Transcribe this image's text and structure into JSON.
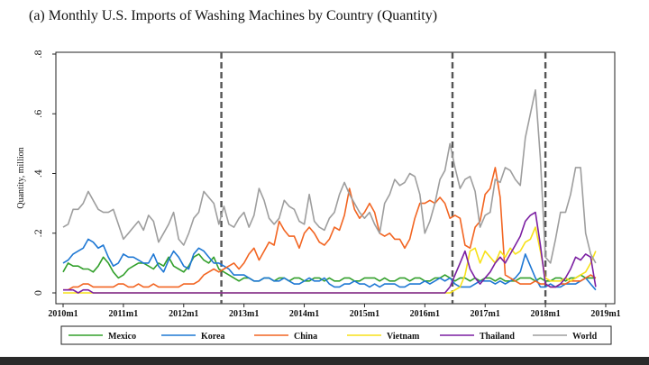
{
  "title": "(a) Monthly U.S. Imports of Washing Machines by Country (Quantity)",
  "chart_data": {
    "type": "line",
    "ylabel": "Quantity, million",
    "xlabel": "",
    "ylim": [
      0,
      0.8
    ],
    "yticks": [
      0,
      0.2,
      0.4,
      0.6,
      0.8
    ],
    "ytick_labels": [
      "0",
      ".2",
      ".4",
      ".6",
      ".8"
    ],
    "xticks": [
      0,
      12,
      24,
      36,
      48,
      60,
      72,
      84,
      96,
      108
    ],
    "xtick_labels": [
      "2010m1",
      "2011m1",
      "2012m1",
      "2013m1",
      "2014m1",
      "2015m1",
      "2016m1",
      "2017m1",
      "2018m1",
      "2019m1"
    ],
    "vlines": [
      31.5,
      77.5,
      96
    ],
    "legend_position": "bottom",
    "series": [
      {
        "name": "Mexico",
        "color": "#33a02c",
        "values": [
          0.07,
          0.1,
          0.09,
          0.09,
          0.08,
          0.08,
          0.07,
          0.09,
          0.12,
          0.1,
          0.07,
          0.05,
          0.06,
          0.08,
          0.09,
          0.1,
          0.1,
          0.09,
          0.08,
          0.1,
          0.09,
          0.12,
          0.09,
          0.08,
          0.07,
          0.09,
          0.12,
          0.13,
          0.11,
          0.1,
          0.12,
          0.08,
          0.07,
          0.06,
          0.05,
          0.04,
          0.05,
          0.05,
          0.04,
          0.04,
          0.05,
          0.05,
          0.04,
          0.05,
          0.05,
          0.04,
          0.05,
          0.05,
          0.04,
          0.04,
          0.05,
          0.05,
          0.04,
          0.05,
          0.04,
          0.04,
          0.05,
          0.05,
          0.04,
          0.04,
          0.05,
          0.05,
          0.05,
          0.04,
          0.05,
          0.04,
          0.04,
          0.05,
          0.05,
          0.04,
          0.05,
          0.05,
          0.04,
          0.04,
          0.05,
          0.05,
          0.06,
          0.05,
          0.04,
          0.05,
          0.05,
          0.04,
          0.05,
          0.04,
          0.05,
          0.05,
          0.04,
          0.05,
          0.04,
          0.04,
          0.04,
          0.05,
          0.05,
          0.05,
          0.04,
          0.05,
          0.04,
          0.04,
          0.05,
          0.05,
          0.04,
          0.05,
          0.05,
          0.06,
          0.05,
          0.05,
          0.05
        ]
      },
      {
        "name": "Korea",
        "color": "#1f78d4",
        "values": [
          0.1,
          0.11,
          0.13,
          0.14,
          0.15,
          0.18,
          0.17,
          0.15,
          0.16,
          0.12,
          0.09,
          0.1,
          0.13,
          0.12,
          0.12,
          0.11,
          0.1,
          0.1,
          0.13,
          0.09,
          0.07,
          0.11,
          0.14,
          0.12,
          0.09,
          0.08,
          0.13,
          0.15,
          0.14,
          0.12,
          0.1,
          0.1,
          0.09,
          0.08,
          0.06,
          0.06,
          0.06,
          0.05,
          0.04,
          0.04,
          0.05,
          0.05,
          0.04,
          0.04,
          0.05,
          0.04,
          0.03,
          0.03,
          0.04,
          0.05,
          0.04,
          0.04,
          0.05,
          0.03,
          0.02,
          0.02,
          0.03,
          0.03,
          0.04,
          0.03,
          0.03,
          0.02,
          0.03,
          0.02,
          0.03,
          0.03,
          0.03,
          0.02,
          0.02,
          0.03,
          0.03,
          0.03,
          0.04,
          0.03,
          0.04,
          0.05,
          0.04,
          0.05,
          0.03,
          0.02,
          0.02,
          0.02,
          0.03,
          0.04,
          0.04,
          0.04,
          0.03,
          0.04,
          0.03,
          0.04,
          0.05,
          0.07,
          0.13,
          0.09,
          0.05,
          0.02,
          0.02,
          0.03,
          0.02,
          0.02,
          0.03,
          0.03,
          0.03,
          0.04,
          0.05,
          0.03,
          0.01
        ]
      },
      {
        "name": "China",
        "color": "#f26522",
        "values": [
          0.01,
          0.01,
          0.02,
          0.02,
          0.03,
          0.03,
          0.02,
          0.02,
          0.02,
          0.02,
          0.02,
          0.03,
          0.03,
          0.02,
          0.02,
          0.03,
          0.02,
          0.02,
          0.03,
          0.02,
          0.02,
          0.02,
          0.02,
          0.02,
          0.03,
          0.03,
          0.03,
          0.04,
          0.06,
          0.07,
          0.08,
          0.07,
          0.08,
          0.09,
          0.1,
          0.08,
          0.1,
          0.13,
          0.15,
          0.11,
          0.14,
          0.17,
          0.16,
          0.24,
          0.21,
          0.19,
          0.19,
          0.15,
          0.2,
          0.22,
          0.2,
          0.17,
          0.16,
          0.18,
          0.22,
          0.21,
          0.26,
          0.35,
          0.28,
          0.25,
          0.27,
          0.3,
          0.27,
          0.2,
          0.19,
          0.2,
          0.18,
          0.18,
          0.15,
          0.18,
          0.25,
          0.3,
          0.3,
          0.31,
          0.3,
          0.32,
          0.3,
          0.25,
          0.26,
          0.25,
          0.16,
          0.15,
          0.22,
          0.24,
          0.33,
          0.35,
          0.42,
          0.32,
          0.06,
          0.05,
          0.04,
          0.03,
          0.03,
          0.03,
          0.04,
          0.03,
          0.03,
          0.02,
          0.02,
          0.03,
          0.03,
          0.04,
          0.04,
          0.04,
          0.05,
          0.06,
          0.05
        ]
      },
      {
        "name": "Vietnam",
        "color": "#f7e11a",
        "values": [
          0,
          0,
          0,
          0,
          0,
          0,
          0,
          0,
          0,
          0,
          0,
          0,
          0,
          0,
          0,
          0,
          0,
          0,
          0,
          0,
          0,
          0,
          0,
          0,
          0,
          0,
          0,
          0,
          0,
          0,
          0,
          0,
          0,
          0,
          0,
          0,
          0,
          0,
          0,
          0,
          0,
          0,
          0,
          0,
          0,
          0,
          0,
          0,
          0,
          0,
          0,
          0,
          0,
          0,
          0,
          0,
          0,
          0,
          0,
          0,
          0,
          0,
          0,
          0,
          0,
          0,
          0,
          0,
          0,
          0,
          0,
          0,
          0,
          0,
          0,
          0,
          0,
          0,
          0.01,
          0.02,
          0.06,
          0.14,
          0.15,
          0.1,
          0.14,
          0.12,
          0.1,
          0.14,
          0.12,
          0.15,
          0.13,
          0.14,
          0.17,
          0.18,
          0.22,
          0.14,
          0.05,
          0.04,
          0.04,
          0.04,
          0.05,
          0.04,
          0.05,
          0.06,
          0.07,
          0.1,
          0.14
        ]
      },
      {
        "name": "Thailand",
        "color": "#7b1fa2",
        "values": [
          0.01,
          0.01,
          0.01,
          0,
          0.01,
          0.01,
          0,
          0,
          0,
          0,
          0,
          0,
          0,
          0,
          0,
          0,
          0,
          0,
          0,
          0,
          0,
          0,
          0,
          0,
          0,
          0,
          0,
          0,
          0,
          0,
          0,
          0,
          0,
          0,
          0,
          0,
          0,
          0,
          0,
          0,
          0,
          0,
          0,
          0,
          0,
          0,
          0,
          0,
          0,
          0,
          0,
          0,
          0,
          0,
          0,
          0,
          0,
          0,
          0,
          0,
          0,
          0,
          0,
          0,
          0,
          0,
          0,
          0,
          0,
          0,
          0,
          0,
          0,
          0,
          0,
          0,
          0,
          0.02,
          0.06,
          0.1,
          0.14,
          0.08,
          0.05,
          0.03,
          0.05,
          0.07,
          0.1,
          0.12,
          0.1,
          0.13,
          0.16,
          0.19,
          0.24,
          0.26,
          0.27,
          0.16,
          0.03,
          0.02,
          0.02,
          0.03,
          0.05,
          0.08,
          0.12,
          0.11,
          0.13,
          0.12,
          0.02
        ]
      },
      {
        "name": "World",
        "color": "#9e9e9e",
        "values": [
          0.22,
          0.23,
          0.28,
          0.28,
          0.3,
          0.34,
          0.31,
          0.28,
          0.27,
          0.27,
          0.28,
          0.23,
          0.18,
          0.2,
          0.22,
          0.24,
          0.21,
          0.26,
          0.24,
          0.17,
          0.2,
          0.23,
          0.27,
          0.18,
          0.16,
          0.2,
          0.25,
          0.27,
          0.34,
          0.32,
          0.3,
          0.23,
          0.29,
          0.23,
          0.22,
          0.25,
          0.27,
          0.22,
          0.26,
          0.35,
          0.31,
          0.25,
          0.23,
          0.25,
          0.31,
          0.29,
          0.28,
          0.24,
          0.23,
          0.33,
          0.24,
          0.22,
          0.21,
          0.25,
          0.27,
          0.33,
          0.37,
          0.33,
          0.3,
          0.27,
          0.25,
          0.27,
          0.23,
          0.2,
          0.3,
          0.33,
          0.38,
          0.36,
          0.37,
          0.4,
          0.39,
          0.33,
          0.2,
          0.24,
          0.3,
          0.38,
          0.41,
          0.5,
          0.42,
          0.35,
          0.38,
          0.39,
          0.34,
          0.22,
          0.26,
          0.27,
          0.38,
          0.37,
          0.42,
          0.41,
          0.38,
          0.36,
          0.52,
          0.6,
          0.68,
          0.45,
          0.12,
          0.1,
          0.18,
          0.27,
          0.27,
          0.33,
          0.42,
          0.42,
          0.2,
          0.13,
          0.1
        ]
      }
    ]
  }
}
